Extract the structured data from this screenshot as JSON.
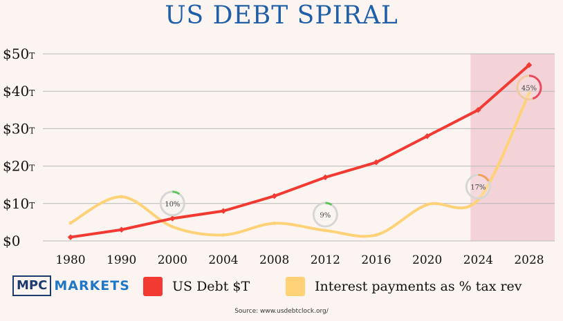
{
  "title": "US DEBT SPIRAL",
  "colors": {
    "title": "#1f5fa8",
    "debt": "#f23a33",
    "interest": "#ffd277",
    "highlight": "#f2cfd5",
    "grid": "#b8b8b8",
    "badge_green": "#5bc75b",
    "badge_red": "#e84a5f",
    "badge_ring": "#d6d6d6",
    "badge_ring_warm": "#f2c9a0"
  },
  "legend": {
    "logo_box": "MPC",
    "logo_word": "MARKETS",
    "debt_label": "US Debt $T",
    "interest_label": "Interest payments as % tax rev"
  },
  "source": "Source: www.usdebtclock.org/",
  "chart_data": {
    "type": "line",
    "title": "US DEBT SPIRAL",
    "categories": [
      "1980",
      "1990",
      "2000",
      "2004",
      "2008",
      "2012",
      "2016",
      "2020",
      "2024",
      "2028"
    ],
    "y_ticks": [
      {
        "value": 0,
        "label": "$0",
        "unit": ""
      },
      {
        "value": 10,
        "label": "$10",
        "unit": "T"
      },
      {
        "value": 20,
        "label": "$20",
        "unit": "T"
      },
      {
        "value": 30,
        "label": "$30",
        "unit": "T"
      },
      {
        "value": 40,
        "label": "$40",
        "unit": "T"
      },
      {
        "value": 50,
        "label": "$50",
        "unit": "T"
      }
    ],
    "ylim": [
      0,
      50
    ],
    "grid": true,
    "highlight_range": [
      "2024",
      "2028"
    ],
    "series": [
      {
        "name": "US Debt $T",
        "color": "#f23a33",
        "smooth": false,
        "values": [
          1,
          3,
          6,
          8,
          12,
          17,
          21,
          28,
          35,
          47
        ]
      },
      {
        "name": "Interest payments as % tax rev",
        "color": "#ffd277",
        "smooth": true,
        "values": [
          4.8,
          11.8,
          3.8,
          1.6,
          4.7,
          2.8,
          1.6,
          9.7,
          11.0,
          39.5
        ]
      }
    ],
    "annotations": [
      {
        "label": "10%",
        "x": "2000",
        "y": 10.0,
        "color": "#5bc75b",
        "fraction": 0.1
      },
      {
        "label": "9%",
        "x": "2012",
        "y": 7.0,
        "color": "#5bc75b",
        "fraction": 0.09
      },
      {
        "label": "17%",
        "x": "2024",
        "y": 14.5,
        "color": "#f2a05a",
        "fraction": 0.17
      },
      {
        "label": "45%",
        "x": "2028",
        "y": 41.0,
        "color": "#e84a5f",
        "fraction": 0.45
      }
    ]
  }
}
